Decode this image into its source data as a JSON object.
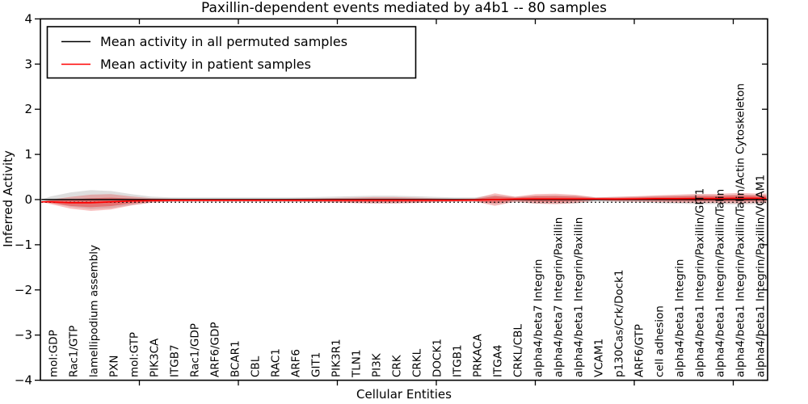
{
  "legend": {
    "items": [
      {
        "label": "Mean activity in all permuted samples",
        "color": "#000000"
      },
      {
        "label": "Mean activity in patient samples",
        "color": "#ff0000"
      }
    ]
  },
  "chart_data": {
    "type": "area",
    "subtype": "violin-band",
    "title": "Paxillin-dependent events mediated by a4b1 -- 80 samples",
    "xlabel": "Cellular Entities",
    "ylabel": "Inferred Activity",
    "ylim": [
      -4,
      4
    ],
    "yticks": [
      -4,
      -3,
      -2,
      -1,
      0,
      1,
      2,
      3,
      4
    ],
    "grid": false,
    "legend_position": "upper left",
    "colors": {
      "permuted_line": "#000000",
      "permuted_band": "#8a8a8a",
      "patient_line": "#ff0000",
      "patient_band": "#e53030",
      "reference_dotted": "#000000"
    },
    "categories": [
      "mol:GDP",
      "Rac1/GTP",
      "lamellipodium assembly",
      "PXN",
      "mol:GTP",
      "PIK3CA",
      "ITGB7",
      "Rac1/GDP",
      "ARF6/GDP",
      "BCAR1",
      "CBL",
      "RAC1",
      "ARF6",
      "GIT1",
      "PIK3R1",
      "TLN1",
      "PI3K",
      "CRK",
      "CRKL",
      "DOCK1",
      "ITGB1",
      "PRKACA",
      "ITGA4",
      "CRKL/CBL",
      "alpha4/beta7 Integrin",
      "alpha4/beta7 Integrin/Paxillin",
      "alpha4/beta1 Integrin/Paxillin",
      "VCAM1",
      "p130Cas/Crk/Dock1",
      "ARF6/GTP",
      "cell adhesion",
      "alpha4/beta1 Integrin",
      "alpha4/beta1 Integrin/Paxillin/GIT1",
      "alpha4/beta1 Integrin/Paxillin/Talin",
      "alpha4/beta1 Integrin/Paxillin/Talin/Actin Cytoskeleton",
      "alpha4/beta1 Integrin/Paxillin/VCAM1"
    ],
    "series": [
      {
        "name": "Mean activity in all permuted samples",
        "mean": 0,
        "spread": [
          0.07,
          0.16,
          0.21,
          0.19,
          0.12,
          0.065,
          0.05,
          0.05,
          0.05,
          0.05,
          0.05,
          0.05,
          0.05,
          0.055,
          0.065,
          0.075,
          0.085,
          0.085,
          0.075,
          0.06,
          0.05,
          0.05,
          0.1,
          0.06,
          0.09,
          0.095,
          0.09,
          0.05,
          0.06,
          0.065,
          0.08,
          0.09,
          0.1,
          0.1,
          0.11,
          0.1
        ]
      },
      {
        "name": "Mean activity in patient samples",
        "mean": [
          -0.05,
          -0.07,
          -0.07,
          -0.05,
          -0.03,
          -0.02,
          -0.015,
          -0.015,
          -0.015,
          -0.015,
          -0.015,
          -0.015,
          -0.015,
          -0.015,
          -0.015,
          -0.015,
          -0.015,
          -0.015,
          -0.015,
          -0.015,
          -0.015,
          -0.01,
          0,
          0.01,
          0.015,
          0.015,
          0.015,
          0.015,
          0.01,
          0.015,
          0.02,
          0.02,
          0.025,
          0.025,
          0.03,
          0.03
        ],
        "spread": [
          0.05,
          0.13,
          0.18,
          0.17,
          0.1,
          0.05,
          0.035,
          0.03,
          0.03,
          0.03,
          0.03,
          0.03,
          0.035,
          0.04,
          0.05,
          0.06,
          0.07,
          0.07,
          0.06,
          0.045,
          0.035,
          0.035,
          0.14,
          0.055,
          0.105,
          0.115,
          0.09,
          0.035,
          0.05,
          0.06,
          0.075,
          0.09,
          0.1,
          0.1,
          0.115,
          0.105
        ]
      }
    ],
    "reference_line": {
      "style": "dotted",
      "y": -0.06
    }
  }
}
